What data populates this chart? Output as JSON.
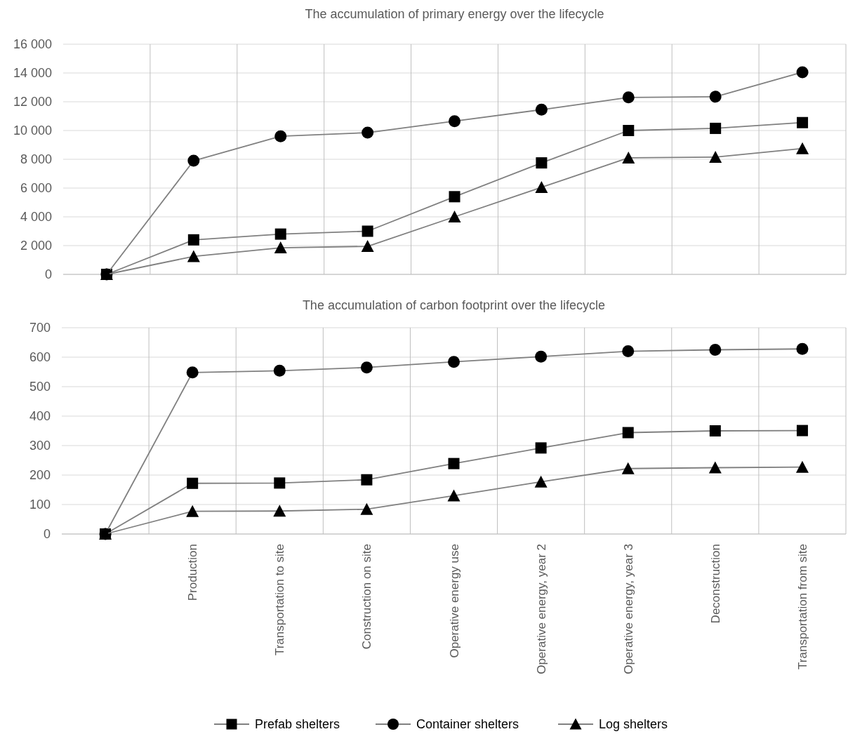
{
  "chart_data": [
    {
      "type": "line",
      "title": "The accumulation of primary energy over the lifecycle",
      "categories": [
        null,
        null,
        null,
        null,
        null,
        null,
        null,
        null,
        null
      ],
      "ylim": [
        0,
        16000
      ],
      "yticks": [
        0,
        {
          "value": 2000,
          "label": "2 000"
        },
        {
          "value": 4000,
          "label": "4 000"
        },
        {
          "value": 6000,
          "label": "6 000"
        },
        {
          "value": 8000,
          "label": "8 000"
        },
        {
          "value": 10000,
          "label": "10 000"
        },
        {
          "value": 12000,
          "label": "12 000"
        },
        {
          "value": 14000,
          "label": "14 000"
        },
        {
          "value": 16000,
          "label": "16 000"
        }
      ],
      "grid": true,
      "tick_labels": "y",
      "legend": false,
      "series": [
        {
          "color": "#808080",
          "marker": "square",
          "values": [
            0,
            2400,
            2800,
            3000,
            5400,
            7750,
            10000,
            10150,
            10550
          ]
        },
        {
          "color": "#808080",
          "marker": "circle",
          "values": [
            0,
            7900,
            9600,
            9850,
            10650,
            11450,
            12300,
            12350,
            14050
          ]
        },
        {
          "color": "#808080",
          "marker": "triangle",
          "values": [
            0,
            1250,
            1850,
            1950,
            4000,
            6050,
            8100,
            8150,
            8750
          ]
        }
      ]
    },
    {
      "type": "line",
      "title": "The accumulation of carbon footprint over the lifecycle",
      "categories": [
        null,
        "Production",
        "Transportation to site",
        "Construction on site",
        "Operative energy use",
        "Operative energy, year 2",
        "Operative energy, year 3",
        "Deconstruction",
        "Transportation from site"
      ],
      "ylim": [
        0,
        700
      ],
      "yticks": [
        0,
        100,
        200,
        300,
        400,
        500,
        600,
        700
      ],
      "grid": true,
      "legend": "bottom",
      "series": [
        {
          "name": "Prefab shelters",
          "color": "#808080",
          "marker": "square",
          "values": [
            0,
            172,
            173,
            184,
            239,
            292,
            344,
            350,
            351
          ]
        },
        {
          "name": "Container shelters",
          "color": "#808080",
          "marker": "circle",
          "values": [
            0,
            548,
            554,
            565,
            584,
            602,
            620,
            625,
            628
          ]
        },
        {
          "name": "Log shelters",
          "color": "#808080",
          "marker": "triangle",
          "values": [
            0,
            77,
            78,
            84,
            130,
            177,
            222,
            225,
            227
          ]
        }
      ]
    }
  ]
}
